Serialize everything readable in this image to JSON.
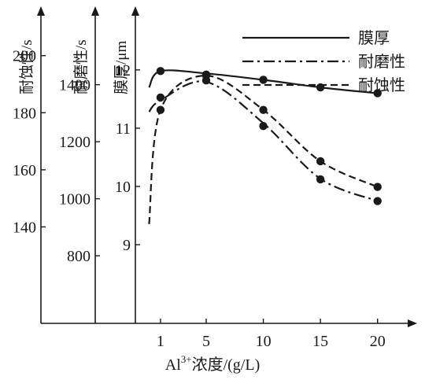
{
  "chart_data": {
    "type": "line",
    "xlabel_main": "Al",
    "xlabel_sup": "3+",
    "xlabel_rest": "浓度/(g/L)",
    "x_ticks": [
      1,
      5,
      10,
      15,
      20
    ],
    "xlim": [
      -1.2,
      22.5
    ],
    "axes": [
      {
        "key": "corrosion",
        "title": "耐蚀性/s",
        "ticks": [
          140,
          160,
          180,
          200
        ],
        "ylim": [
          106.2,
          219.5
        ]
      },
      {
        "key": "wear",
        "title": "耐磨性/s",
        "ticks": [
          800,
          1000,
          1200,
          1400
        ],
        "ylim": [
          563,
          1697
        ]
      },
      {
        "key": "thickness",
        "title": "膜厚/μm",
        "ticks": [
          9,
          10,
          11,
          12
        ],
        "ylim": [
          7.65,
          13.2
        ]
      }
    ],
    "series": [
      {
        "name": "膜厚",
        "axis": "thickness",
        "style": "solid",
        "x": [
          1,
          5,
          10,
          15,
          20
        ],
        "y": [
          11.98,
          11.92,
          11.83,
          11.7,
          11.6
        ],
        "curve": [
          [
            0,
            11.7
          ],
          [
            1,
            11.98
          ],
          [
            5,
            11.94
          ],
          [
            10,
            11.83
          ],
          [
            15,
            11.7
          ],
          [
            20,
            11.6
          ]
        ]
      },
      {
        "name": "耐磨性",
        "axis": "wear",
        "style": "dashdot",
        "x": [
          1,
          5,
          10,
          15,
          20
        ],
        "y": [
          1355,
          1415,
          1255,
          1068,
          992
        ],
        "curve": [
          [
            0,
            1305
          ],
          [
            1,
            1345
          ],
          [
            5,
            1410
          ],
          [
            10,
            1265
          ],
          [
            15,
            1070
          ],
          [
            20,
            992
          ]
        ]
      },
      {
        "name": "耐蚀性",
        "axis": "corrosion",
        "style": "dashed",
        "x": [
          1,
          5,
          10,
          15,
          20
        ],
        "y": [
          181,
          193,
          181,
          163,
          154
        ],
        "curve": [
          [
            0,
            141
          ],
          [
            1,
            181
          ],
          [
            5,
            193
          ],
          [
            10,
            181
          ],
          [
            15,
            163
          ],
          [
            20,
            154
          ]
        ]
      }
    ],
    "legend_placement": "top-right",
    "grid": false
  }
}
